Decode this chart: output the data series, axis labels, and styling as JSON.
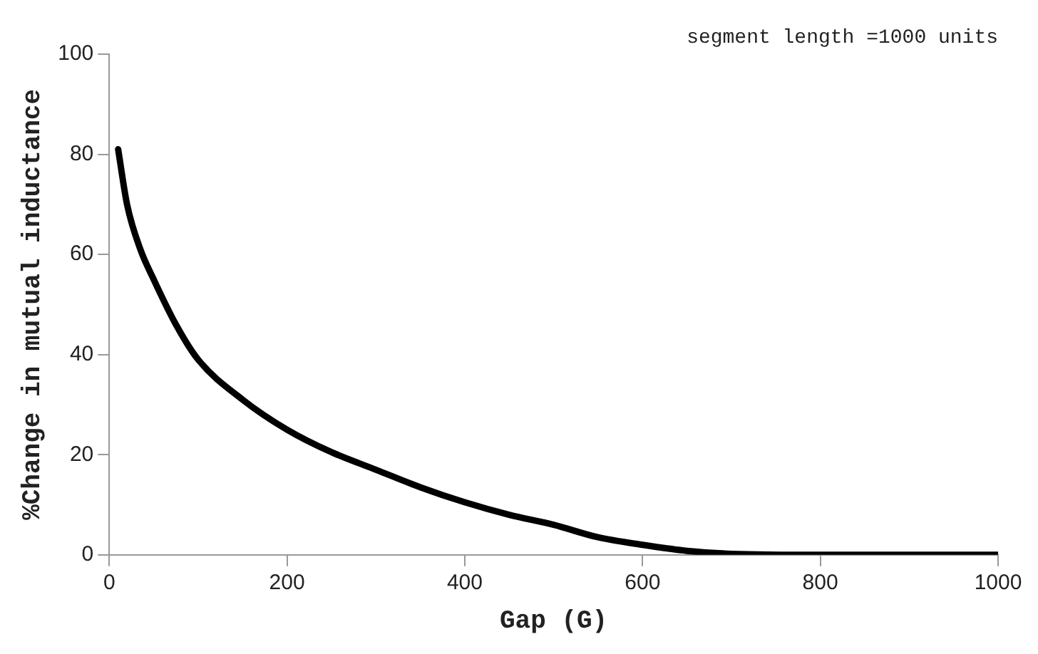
{
  "chart_data": {
    "type": "line",
    "xlabel": "Gap (G)",
    "ylabel": "%Change in mutual inductance",
    "annotations": [
      "segment length =1000 units"
    ],
    "x": [
      10,
      20,
      35,
      50,
      75,
      100,
      150,
      200,
      250,
      300,
      350,
      400,
      450,
      500,
      550,
      600,
      650,
      700,
      800,
      900,
      1000
    ],
    "series": [
      {
        "color": "#000000",
        "values": [
          81,
          70,
          61,
          55,
          46,
          39,
          31,
          25,
          20.5,
          17,
          13.5,
          10.5,
          8,
          6,
          3.5,
          2,
          0.8,
          0.2,
          0,
          0,
          0
        ]
      }
    ],
    "xlim": [
      0,
      1000
    ],
    "xticks": [
      0,
      200,
      400,
      600,
      800,
      1000
    ],
    "ylim": [
      0,
      100
    ],
    "yticks": [
      0,
      20,
      40,
      60,
      80,
      100
    ],
    "grid": false,
    "legend": false,
    "marker": "none",
    "line_style": "solid"
  }
}
